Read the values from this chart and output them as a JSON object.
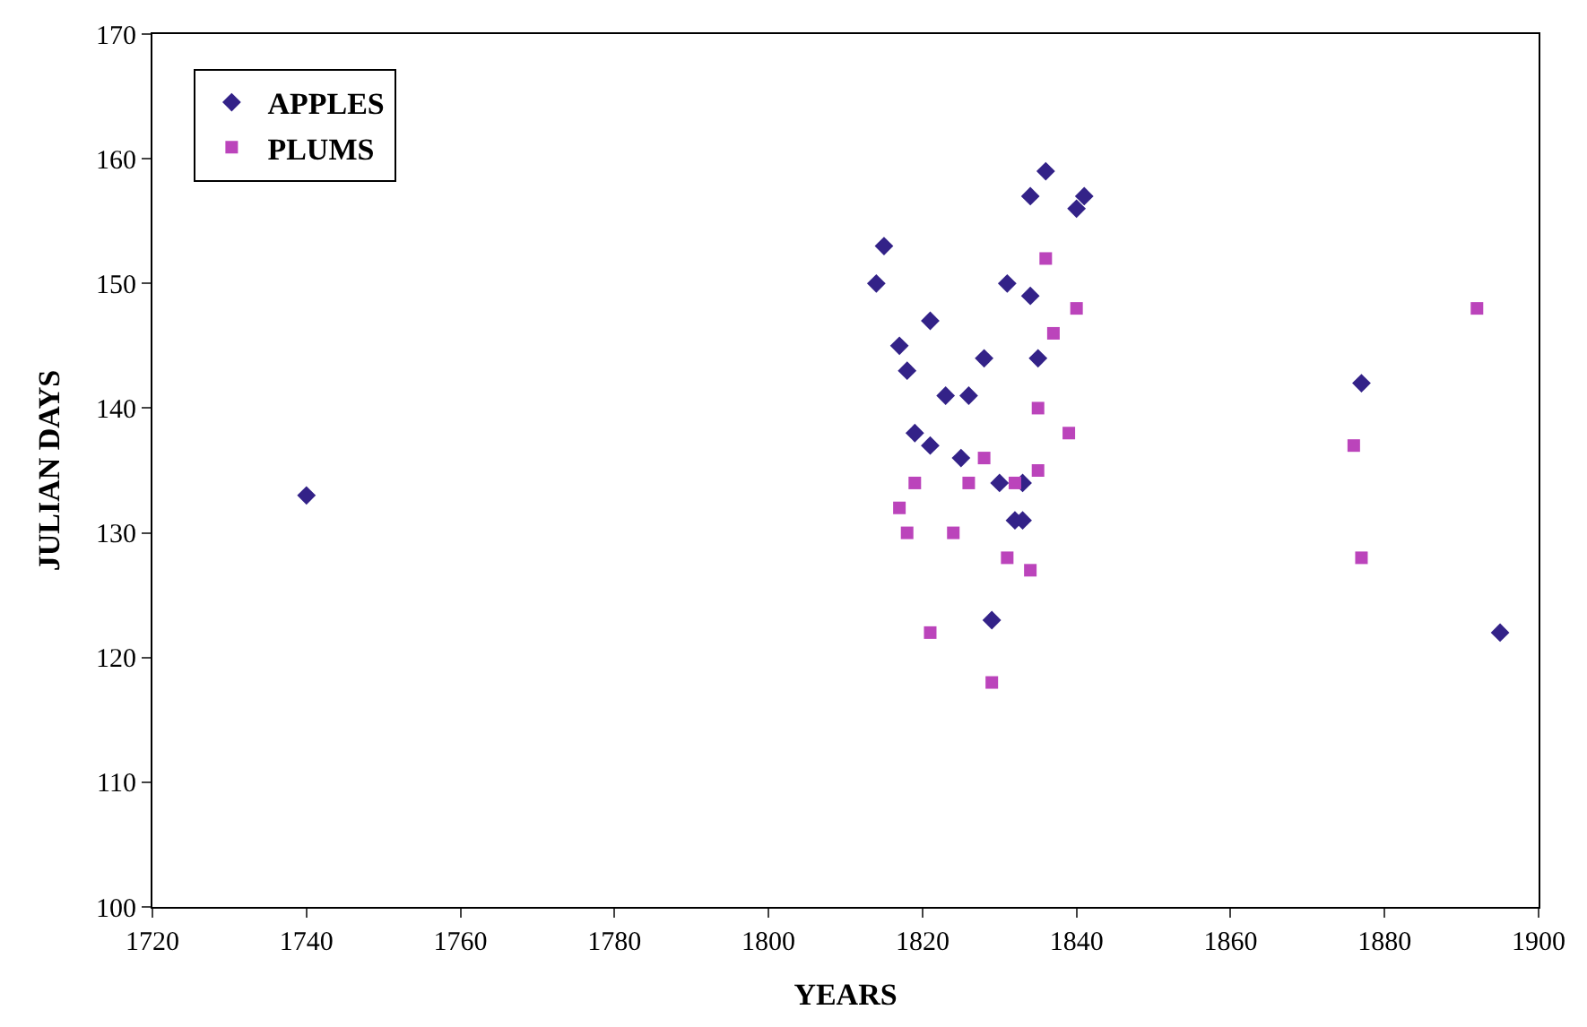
{
  "chart_data": {
    "type": "scatter",
    "xlabel": "YEARS",
    "ylabel": "JULIAN DAYS",
    "xlim": [
      1720,
      1900
    ],
    "xticks": [
      1720,
      1740,
      1760,
      1780,
      1800,
      1820,
      1840,
      1860,
      1880,
      1900
    ],
    "ylim": [
      100,
      170
    ],
    "yticks": [
      100,
      110,
      120,
      130,
      140,
      150,
      160,
      170
    ],
    "legend": "top left",
    "series": [
      {
        "name": "APPLES",
        "color": "#332288",
        "marker": "diamond",
        "x": [
          1740,
          1814,
          1815,
          1817,
          1818,
          1819,
          1821,
          1821,
          1823,
          1825,
          1826,
          1828,
          1829,
          1831,
          1830,
          1832,
          1833,
          1833,
          1834,
          1834,
          1835,
          1836,
          1840,
          1841,
          1877,
          1895
        ],
        "values": [
          133,
          150,
          153,
          145,
          143,
          138,
          147,
          137,
          141,
          136,
          141,
          144,
          123,
          150,
          134,
          131,
          131,
          134,
          149,
          157,
          144,
          159,
          156,
          157,
          142,
          122
        ]
      },
      {
        "name": "PLUMS",
        "color": "#bb44bb",
        "marker": "square",
        "x": [
          1817,
          1819,
          1818,
          1821,
          1824,
          1826,
          1828,
          1831,
          1829,
          1832,
          1834,
          1835,
          1835,
          1836,
          1837,
          1839,
          1840,
          1876,
          1877,
          1892
        ],
        "values": [
          132,
          134,
          130,
          122,
          130,
          134,
          136,
          128,
          118,
          134,
          127,
          135,
          140,
          152,
          146,
          138,
          148,
          137,
          128,
          148
        ]
      }
    ]
  }
}
